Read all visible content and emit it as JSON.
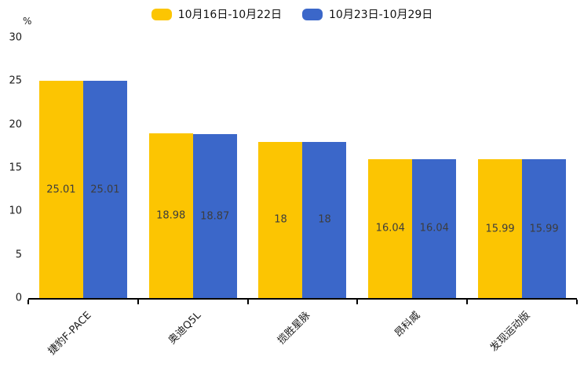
{
  "chart_data": {
    "type": "bar",
    "title": "",
    "ylabel": "%",
    "xlabel": "",
    "ylim": [
      0,
      30
    ],
    "yticks": [
      0,
      5,
      10,
      15,
      20,
      25,
      30
    ],
    "grid": false,
    "legend_position": "top-center",
    "categories": [
      "捷豹F-PACE",
      "奥迪Q5L",
      "揽胜星脉",
      "昂科威",
      "发现运动版"
    ],
    "series": [
      {
        "name": "10月16日-10月22日",
        "color": "#FCC502",
        "values": [
          25.01,
          18.98,
          18,
          16.04,
          15.99
        ],
        "labels": [
          "25.01",
          "18.98",
          "18",
          "16.04",
          "15.99"
        ]
      },
      {
        "name": "10月23日-10月29日",
        "color": "#3B67C9",
        "values": [
          25.01,
          18.87,
          18,
          16.04,
          15.99
        ],
        "labels": [
          "25.01",
          "18.87",
          "18",
          "16.04",
          "15.99"
        ]
      }
    ],
    "colors": {
      "axis": "#000000",
      "tick_text": "#1a1a1a",
      "bar_value_text": "#3d3d3d",
      "background": "#ffffff"
    }
  }
}
